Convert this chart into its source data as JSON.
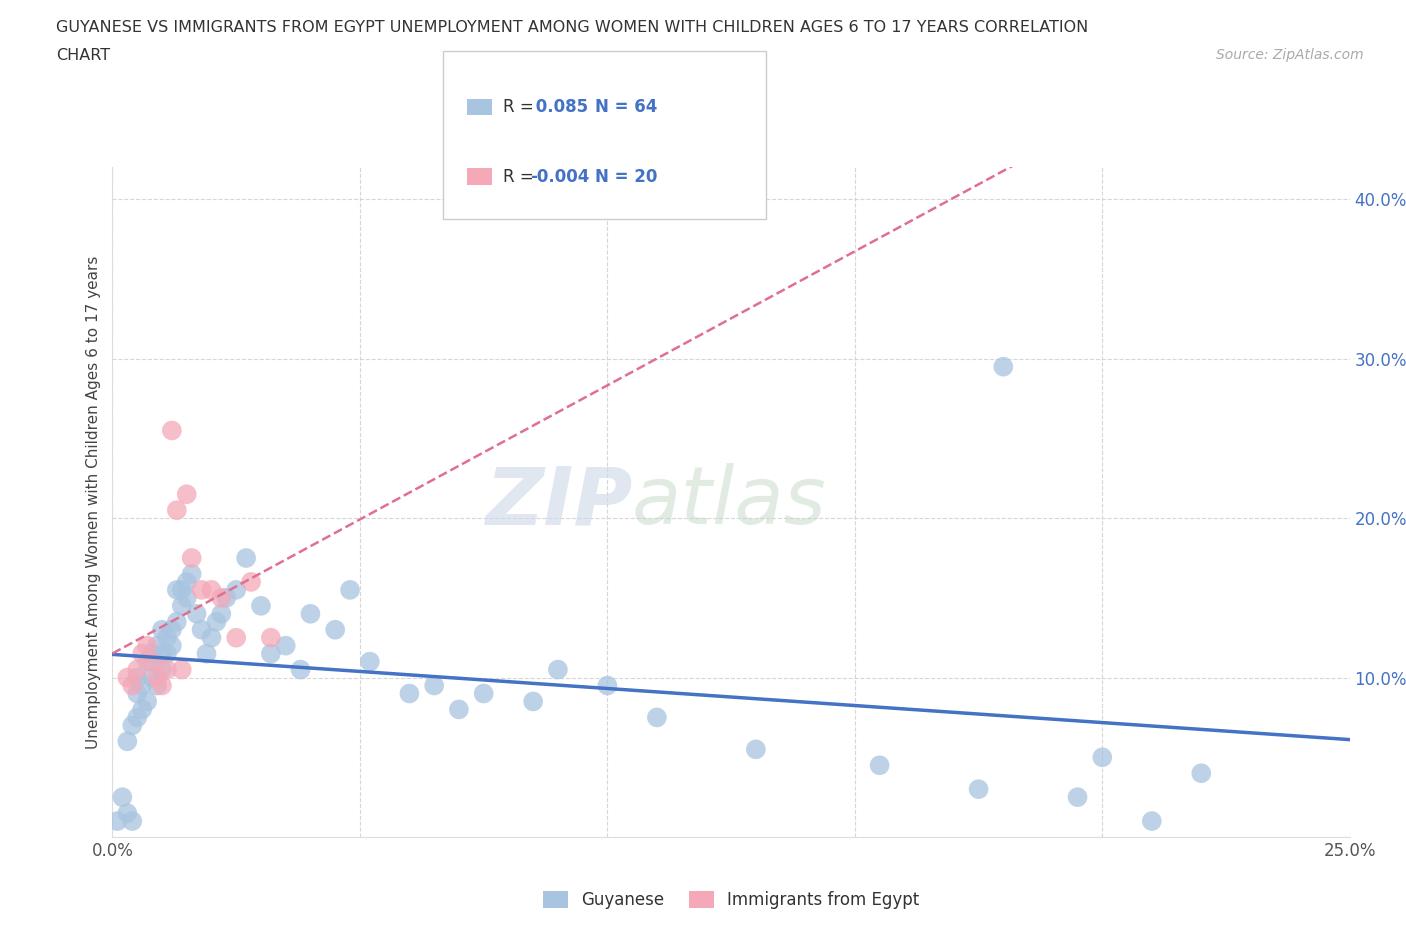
{
  "title_line1": "GUYANESE VS IMMIGRANTS FROM EGYPT UNEMPLOYMENT AMONG WOMEN WITH CHILDREN AGES 6 TO 17 YEARS CORRELATION",
  "title_line2": "CHART",
  "source_text": "Source: ZipAtlas.com",
  "ylabel": "Unemployment Among Women with Children Ages 6 to 17 years",
  "xlim": [
    0.0,
    0.25
  ],
  "ylim": [
    0.0,
    0.42
  ],
  "guyanese_color": "#a8c4e0",
  "egypt_color": "#f4a8b8",
  "trend_blue": "#4472c4",
  "trend_pink": "#e07090",
  "guyanese_x": [
    0.001,
    0.002,
    0.003,
    0.003,
    0.004,
    0.004,
    0.005,
    0.005,
    0.005,
    0.006,
    0.006,
    0.007,
    0.007,
    0.008,
    0.008,
    0.009,
    0.009,
    0.01,
    0.01,
    0.01,
    0.011,
    0.011,
    0.012,
    0.012,
    0.013,
    0.013,
    0.014,
    0.014,
    0.015,
    0.015,
    0.016,
    0.017,
    0.018,
    0.019,
    0.02,
    0.021,
    0.022,
    0.023,
    0.025,
    0.027,
    0.03,
    0.032,
    0.035,
    0.038,
    0.04,
    0.045,
    0.048,
    0.052,
    0.06,
    0.065,
    0.07,
    0.075,
    0.085,
    0.09,
    0.1,
    0.11,
    0.13,
    0.155,
    0.175,
    0.195,
    0.21,
    0.22,
    0.18,
    0.2
  ],
  "guyanese_y": [
    0.01,
    0.025,
    0.015,
    0.06,
    0.01,
    0.07,
    0.075,
    0.09,
    0.1,
    0.08,
    0.095,
    0.11,
    0.085,
    0.1,
    0.115,
    0.095,
    0.12,
    0.115,
    0.105,
    0.13,
    0.115,
    0.125,
    0.13,
    0.12,
    0.155,
    0.135,
    0.155,
    0.145,
    0.16,
    0.15,
    0.165,
    0.14,
    0.13,
    0.115,
    0.125,
    0.135,
    0.14,
    0.15,
    0.155,
    0.175,
    0.145,
    0.115,
    0.12,
    0.105,
    0.14,
    0.13,
    0.155,
    0.11,
    0.09,
    0.095,
    0.08,
    0.09,
    0.085,
    0.105,
    0.095,
    0.075,
    0.055,
    0.045,
    0.03,
    0.025,
    0.01,
    0.04,
    0.295,
    0.05
  ],
  "egypt_x": [
    0.003,
    0.004,
    0.005,
    0.006,
    0.007,
    0.008,
    0.009,
    0.01,
    0.011,
    0.012,
    0.013,
    0.014,
    0.015,
    0.016,
    0.018,
    0.02,
    0.022,
    0.025,
    0.028,
    0.032
  ],
  "egypt_y": [
    0.1,
    0.095,
    0.105,
    0.115,
    0.12,
    0.11,
    0.1,
    0.095,
    0.105,
    0.255,
    0.205,
    0.105,
    0.215,
    0.175,
    0.155,
    0.155,
    0.15,
    0.125,
    0.16,
    0.125
  ]
}
